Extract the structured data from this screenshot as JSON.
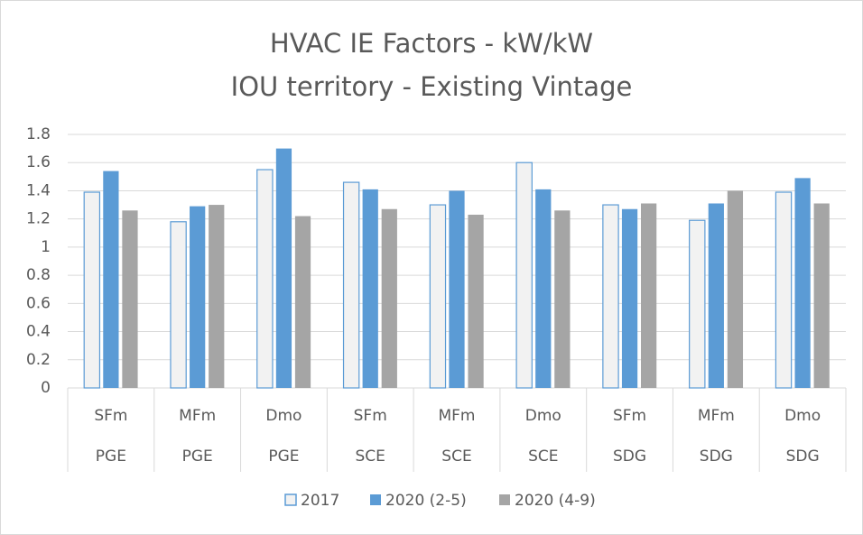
{
  "chart_data": {
    "type": "bar",
    "title": "HVAC IE Factors - kW/kW",
    "subtitle": "IOU territory - Existing Vintage",
    "categories": [
      "SFm",
      "MFm",
      "Dmo",
      "SFm",
      "MFm",
      "Dmo",
      "SFm",
      "MFm",
      "Dmo"
    ],
    "groups": [
      "PGE",
      "PGE",
      "PGE",
      "SCE",
      "SCE",
      "SCE",
      "SDG",
      "SDG",
      "SDG"
    ],
    "series": [
      {
        "name": "2017",
        "color": "#f2f2f2",
        "values": [
          1.39,
          1.18,
          1.55,
          1.46,
          1.3,
          1.6,
          1.3,
          1.19,
          1.39
        ]
      },
      {
        "name": "2020 (2-5)",
        "color": "#5b9bd5",
        "values": [
          1.54,
          1.29,
          1.7,
          1.41,
          1.4,
          1.41,
          1.27,
          1.31,
          1.49
        ]
      },
      {
        "name": "2020 (4-9)",
        "color": "#a5a5a5",
        "values": [
          1.26,
          1.3,
          1.22,
          1.27,
          1.23,
          1.26,
          1.31,
          1.4,
          1.31
        ]
      }
    ],
    "ylim": [
      0,
      1.8
    ],
    "yticks": [
      0,
      0.2,
      0.4,
      0.6,
      0.8,
      1,
      1.2,
      1.4,
      1.6,
      1.8
    ],
    "grid": true,
    "legend": "bottom"
  }
}
